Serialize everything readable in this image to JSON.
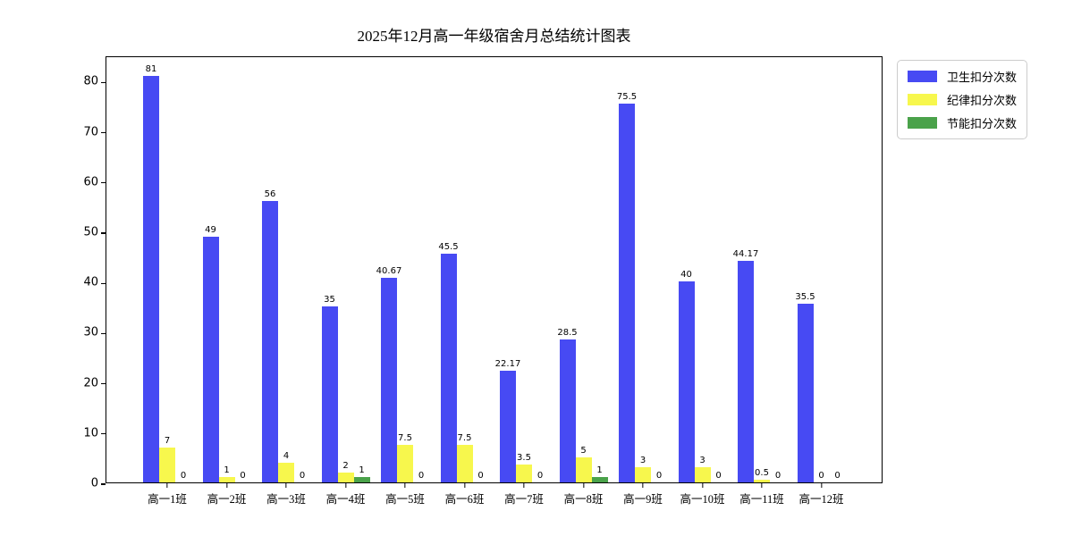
{
  "chart_data": {
    "type": "bar",
    "title": "2025年12月高一年级宿舍月总结统计图表",
    "categories": [
      "高一1班",
      "高一2班",
      "高一3班",
      "高一4班",
      "高一5班",
      "高一6班",
      "高一7班",
      "高一8班",
      "高一9班",
      "高一10班",
      "高一11班",
      "高一12班"
    ],
    "series": [
      {
        "name": "卫生扣分次数",
        "color": "#474af3",
        "values": [
          81,
          49,
          56,
          35,
          40.67,
          45.5,
          22.17,
          28.5,
          75.5,
          40,
          44.17,
          35.5
        ]
      },
      {
        "name": "纪律扣分次数",
        "color": "#f7f74d",
        "values": [
          7,
          1,
          4,
          2,
          7.5,
          7.5,
          3.5,
          5,
          3,
          3,
          0.5,
          0
        ]
      },
      {
        "name": "节能扣分次数",
        "color": "#4aa24a",
        "values": [
          0,
          0,
          0,
          1,
          0,
          0,
          0,
          1,
          0,
          0,
          0,
          0
        ]
      }
    ],
    "xlabel": "",
    "ylabel": "",
    "ylim": [
      0,
      85.05
    ],
    "yticks": [
      0,
      10,
      20,
      30,
      40,
      50,
      60,
      70,
      80
    ],
    "grid": false,
    "bar_value_labels": true,
    "legend_position": "outside-upper-right",
    "axis_color": "#000000",
    "background_color": "#ffffff"
  }
}
